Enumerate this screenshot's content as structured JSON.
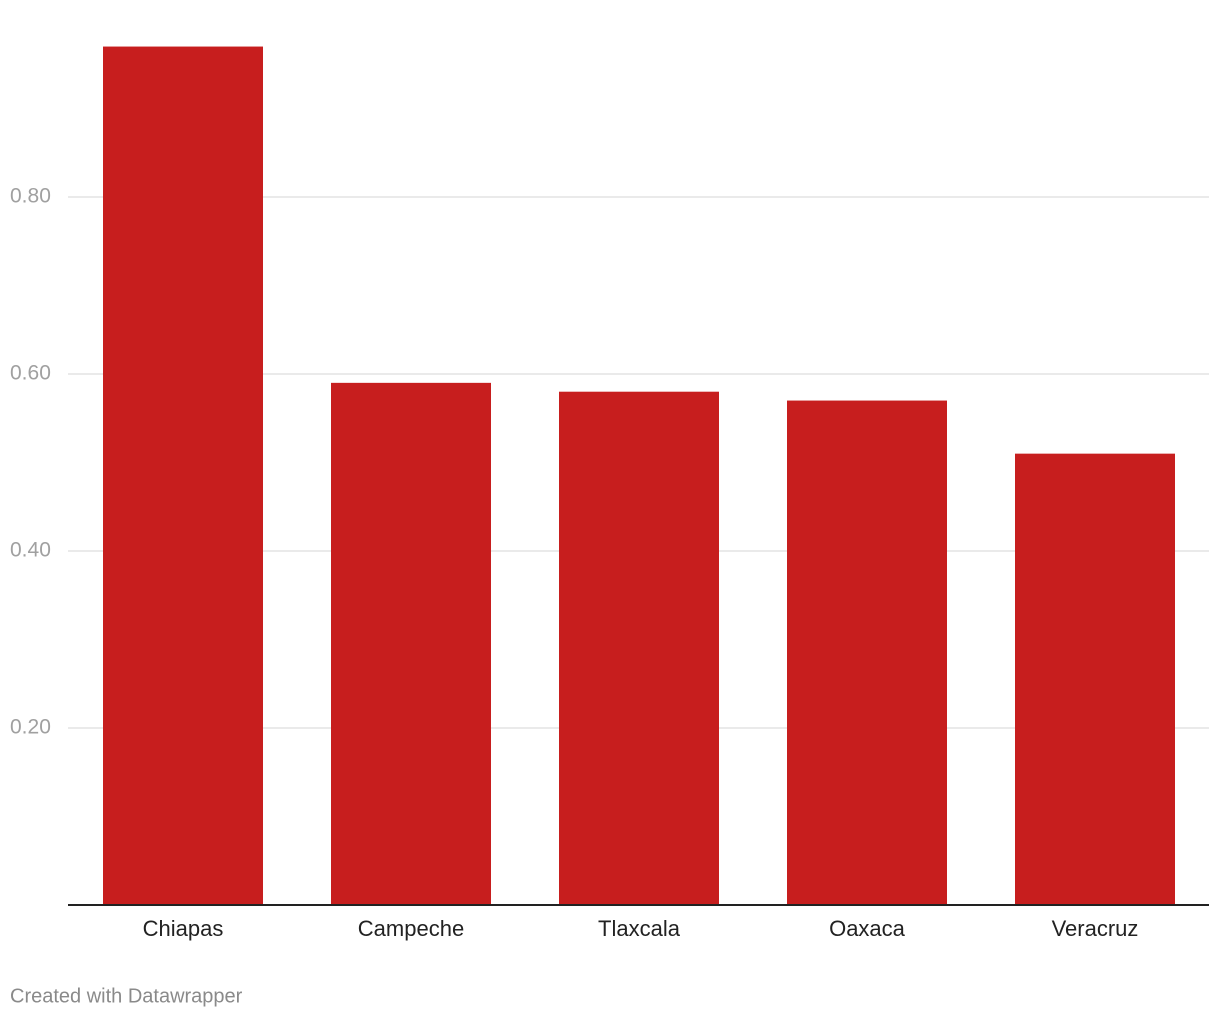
{
  "chart_data": {
    "type": "bar",
    "categories": [
      "Chiapas",
      "Campeche",
      "Tlaxcala",
      "Oaxaca",
      "Veracruz"
    ],
    "values": [
      0.97,
      0.59,
      0.58,
      0.57,
      0.51
    ],
    "color": "#c71e1e",
    "ylim": [
      0,
      1.0
    ],
    "yticks": [
      {
        "value": 0.2,
        "label": "0.20"
      },
      {
        "value": 0.4,
        "label": "0.40"
      },
      {
        "value": 0.6,
        "label": "0.60"
      },
      {
        "value": 0.8,
        "label": "0.80"
      }
    ],
    "grid": true,
    "credit": "Created with Datawrapper"
  }
}
